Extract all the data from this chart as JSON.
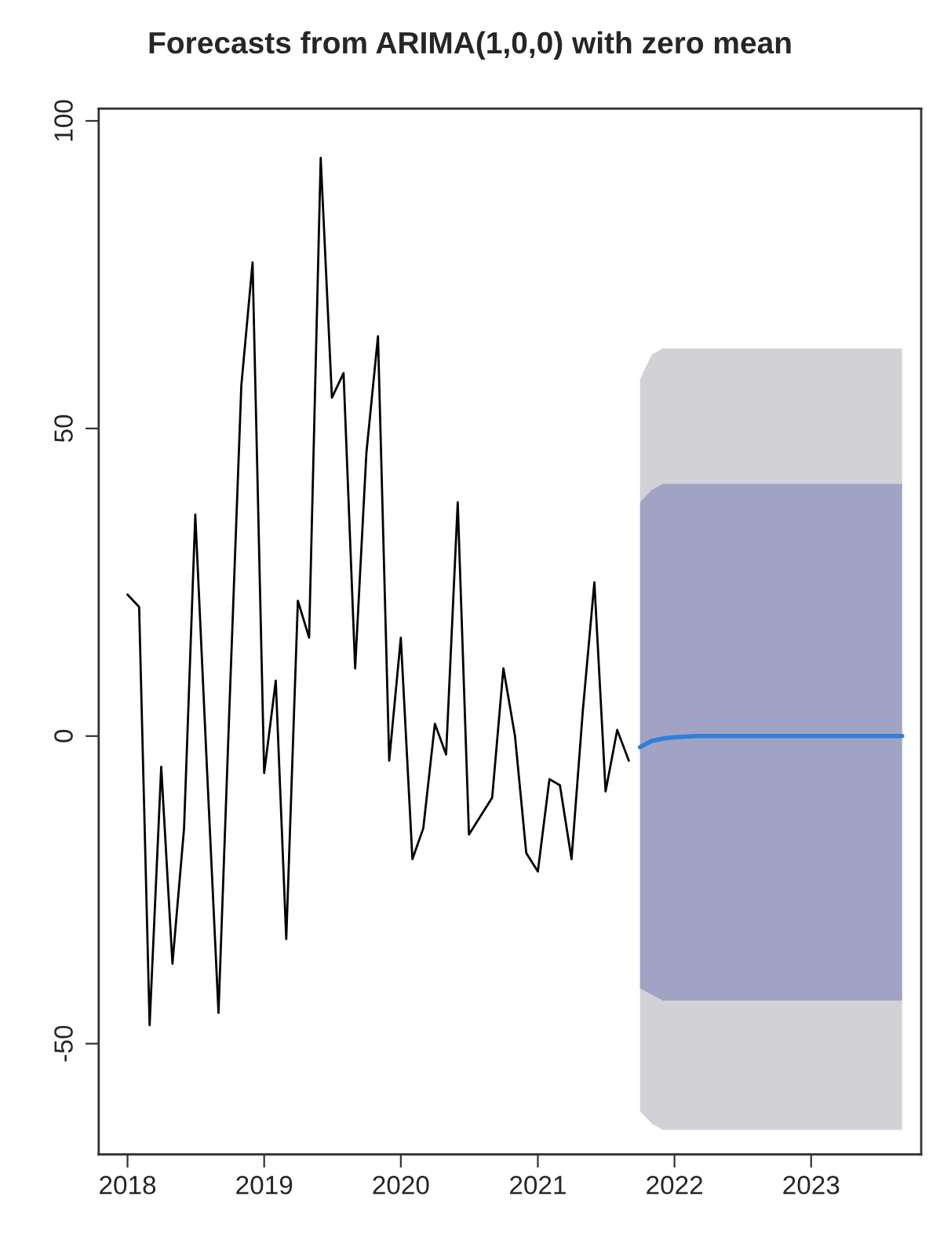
{
  "chart_data": {
    "type": "line",
    "title": "Forecasts from ARIMA(1,0,0) with zero mean",
    "xlim": [
      "2017-10-16",
      "2023-10-22"
    ],
    "ylim": [
      -68,
      102
    ],
    "xticks": [
      {
        "value": "2018-01-01",
        "label": "2018"
      },
      {
        "value": "2019-01-01",
        "label": "2019"
      },
      {
        "value": "2020-01-01",
        "label": "2020"
      },
      {
        "value": "2021-01-01",
        "label": "2021"
      },
      {
        "value": "2022-01-01",
        "label": "2022"
      },
      {
        "value": "2023-01-01",
        "label": "2023"
      }
    ],
    "yticks": [
      -50,
      0,
      50,
      100
    ],
    "grid": false,
    "series": [
      {
        "color": "#000000",
        "x": [
          "2018-01",
          "2018-02",
          "2018-03",
          "2018-04",
          "2018-05",
          "2018-06",
          "2018-07",
          "2018-08",
          "2018-09",
          "2018-10",
          "2018-11",
          "2018-12",
          "2019-01",
          "2019-02",
          "2019-03",
          "2019-04",
          "2019-05",
          "2019-06",
          "2019-07",
          "2019-08",
          "2019-09",
          "2019-10",
          "2019-11",
          "2019-12",
          "2020-01",
          "2020-02",
          "2020-03",
          "2020-04",
          "2020-05",
          "2020-06",
          "2020-07",
          "2020-08",
          "2020-09",
          "2020-10",
          "2020-11",
          "2020-12",
          "2021-01",
          "2021-02",
          "2021-03",
          "2021-04",
          "2021-05",
          "2021-06",
          "2021-07",
          "2021-08",
          "2021-09"
        ],
        "values": [
          23,
          21,
          -47,
          -5,
          -37,
          -15,
          36,
          -5,
          -45,
          6,
          57,
          77,
          -6,
          9,
          -33,
          22,
          16,
          94,
          55,
          59,
          11,
          46,
          65,
          -4,
          16,
          -20,
          -15,
          2,
          -3,
          38,
          -16,
          -13,
          -10,
          11,
          0,
          -19,
          -22,
          -7,
          -8,
          -20,
          4,
          25,
          -9,
          1,
          -4
        ]
      },
      {
        "color": "#d1d1d6",
        "x": [
          "2021-10",
          "2021-11",
          "2021-12",
          "2022-01",
          "2022-02",
          "2022-03",
          "2022-04",
          "2022-05",
          "2022-06",
          "2022-07",
          "2022-08",
          "2022-09",
          "2022-10",
          "2022-11",
          "2022-12",
          "2023-01",
          "2023-02",
          "2023-03",
          "2023-04",
          "2023-05",
          "2023-06",
          "2023-07",
          "2023-08",
          "2023-09"
        ],
        "values": [
          null,
          null,
          null,
          null,
          null,
          null,
          null,
          null,
          null,
          null,
          null,
          null,
          null,
          null,
          null,
          null,
          null,
          null,
          null,
          null,
          null,
          null,
          null,
          null
        ],
        "lower": [
          -61,
          -63,
          -64,
          -64,
          -64,
          -64,
          -64,
          -64,
          -64,
          -64,
          -64,
          -64,
          -64,
          -64,
          -64,
          -64,
          -64,
          -64,
          -64,
          -64,
          -64,
          -64,
          -64,
          -64
        ],
        "upper": [
          58,
          62,
          63,
          63,
          63,
          63,
          63,
          63,
          63,
          63,
          63,
          63,
          63,
          63,
          63,
          63,
          63,
          63,
          63,
          63,
          63,
          63,
          63,
          63
        ]
      },
      {
        "color": "#a1a3c4",
        "x": [
          "2021-10",
          "2021-11",
          "2021-12",
          "2022-01",
          "2022-02",
          "2022-03",
          "2022-04",
          "2022-05",
          "2022-06",
          "2022-07",
          "2022-08",
          "2022-09",
          "2022-10",
          "2022-11",
          "2022-12",
          "2023-01",
          "2023-02",
          "2023-03",
          "2023-04",
          "2023-05",
          "2023-06",
          "2023-07",
          "2023-08",
          "2023-09"
        ],
        "values": [
          null,
          null,
          null,
          null,
          null,
          null,
          null,
          null,
          null,
          null,
          null,
          null,
          null,
          null,
          null,
          null,
          null,
          null,
          null,
          null,
          null,
          null,
          null,
          null
        ],
        "lower": [
          -41,
          -42,
          -43,
          -43,
          -43,
          -43,
          -43,
          -43,
          -43,
          -43,
          -43,
          -43,
          -43,
          -43,
          -43,
          -43,
          -43,
          -43,
          -43,
          -43,
          -43,
          -43,
          -43,
          -43
        ],
        "upper": [
          38,
          40,
          41,
          41,
          41,
          41,
          41,
          41,
          41,
          41,
          41,
          41,
          41,
          41,
          41,
          41,
          41,
          41,
          41,
          41,
          41,
          41,
          41,
          41
        ]
      },
      {
        "color": "#2f7fd9",
        "x": [
          "2021-10",
          "2021-11",
          "2021-12",
          "2022-01",
          "2022-02",
          "2022-03",
          "2022-04",
          "2022-05",
          "2022-06",
          "2022-07",
          "2022-08",
          "2022-09",
          "2022-10",
          "2022-11",
          "2022-12",
          "2023-01",
          "2023-02",
          "2023-03",
          "2023-04",
          "2023-05",
          "2023-06",
          "2023-07",
          "2023-08",
          "2023-09"
        ],
        "values": [
          -1.8,
          -0.8,
          -0.4,
          -0.2,
          -0.1,
          0,
          0,
          0,
          0,
          0,
          0,
          0,
          0,
          0,
          0,
          0,
          0,
          0,
          0,
          0,
          0,
          0,
          0,
          0
        ]
      }
    ]
  }
}
